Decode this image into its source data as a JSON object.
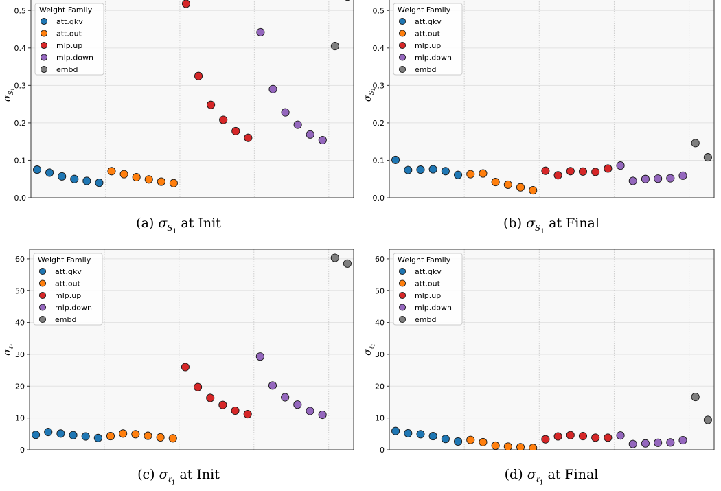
{
  "colors": {
    "att_qkv": "#1f77b4",
    "att_out": "#ff7f0e",
    "mlp_up": "#d62728",
    "mlp_down": "#9467bd",
    "embd": "#7f7f7f",
    "plot_bg": "#f8f8f8"
  },
  "legend": {
    "title": "Weight Family",
    "items": [
      "att.qkv",
      "att.out",
      "mlp.up",
      "mlp.down",
      "embd"
    ]
  },
  "captions": [
    {
      "prefix": "(a)",
      "symbol": "σ",
      "sub": "S",
      "subsub": "1",
      "suffix": "at Init"
    },
    {
      "prefix": "(b)",
      "symbol": "σ",
      "sub": "S",
      "subsub": "1",
      "suffix": "at Final"
    },
    {
      "prefix": "(c)",
      "symbol": "σ",
      "sub": "ℓ",
      "subsub": "1",
      "suffix": "at Init"
    },
    {
      "prefix": "(d)",
      "symbol": "σ",
      "sub": "ℓ",
      "subsub": "1",
      "suffix": "at Final"
    }
  ],
  "chart_data": [
    {
      "type": "scatter",
      "ylabel": "σ_S1",
      "ylabel_main": "σ",
      "ylabel_sub": "S",
      "ylabel_subsub": "1",
      "ylim": [
        0,
        0.55
      ],
      "yticks": [
        0.0,
        0.1,
        0.2,
        0.3,
        0.4,
        0.5
      ],
      "ytick_labels": [
        "0.0",
        "0.1",
        "0.2",
        "0.3",
        "0.4",
        "0.5"
      ],
      "grid": true,
      "legend_position": "top-left",
      "series": [
        {
          "name": "att.qkv",
          "x": [
            0,
            1,
            2,
            3,
            4,
            5
          ],
          "values": [
            0.075,
            0.067,
            0.057,
            0.05,
            0.045,
            0.04
          ]
        },
        {
          "name": "att.out",
          "x": [
            6,
            7,
            8,
            9,
            10,
            11
          ],
          "values": [
            0.071,
            0.063,
            0.055,
            0.049,
            0.043,
            0.039
          ]
        },
        {
          "name": "mlp.up",
          "x": [
            12,
            13,
            14,
            15,
            16,
            17
          ],
          "values": [
            0.518,
            0.325,
            0.248,
            0.208,
            0.178,
            0.16
          ]
        },
        {
          "name": "mlp.down",
          "x": [
            18,
            19,
            20,
            21,
            22,
            23
          ],
          "values": [
            0.442,
            0.29,
            0.228,
            0.195,
            0.169,
            0.154
          ]
        },
        {
          "name": "embd",
          "x": [
            24,
            25
          ],
          "values": [
            0.405,
            0.537
          ]
        }
      ]
    },
    {
      "type": "scatter",
      "ylabel": "σ_S1",
      "ylabel_main": "σ",
      "ylabel_sub": "S",
      "ylabel_subsub": "1",
      "ylim": [
        0,
        0.55
      ],
      "yticks": [
        0.0,
        0.1,
        0.2,
        0.3,
        0.4,
        0.5
      ],
      "ytick_labels": [
        "0.0",
        "0.1",
        "0.2",
        "0.3",
        "0.4",
        "0.5"
      ],
      "grid": true,
      "legend_position": "top-left",
      "series": [
        {
          "name": "att.qkv",
          "x": [
            0,
            1,
            2,
            3,
            4,
            5
          ],
          "values": [
            0.101,
            0.074,
            0.075,
            0.076,
            0.071,
            0.061
          ]
        },
        {
          "name": "att.out",
          "x": [
            6,
            7,
            8,
            9,
            10,
            11
          ],
          "values": [
            0.063,
            0.065,
            0.042,
            0.035,
            0.028,
            0.02
          ]
        },
        {
          "name": "mlp.up",
          "x": [
            12,
            13,
            14,
            15,
            16,
            17
          ],
          "values": [
            0.072,
            0.06,
            0.071,
            0.07,
            0.069,
            0.078
          ]
        },
        {
          "name": "mlp.down",
          "x": [
            18,
            19,
            20,
            21,
            22,
            23
          ],
          "values": [
            0.086,
            0.045,
            0.05,
            0.051,
            0.052,
            0.059
          ]
        },
        {
          "name": "embd",
          "x": [
            24,
            25
          ],
          "values": [
            0.146,
            0.108
          ]
        }
      ]
    },
    {
      "type": "scatter",
      "ylabel": "σ_ℓ1",
      "ylabel_main": "σ",
      "ylabel_sub": "ℓ",
      "ylabel_subsub": "1",
      "ylim": [
        0,
        63
      ],
      "yticks": [
        0,
        10,
        20,
        30,
        40,
        50,
        60
      ],
      "ytick_labels": [
        "0",
        "10",
        "20",
        "30",
        "40",
        "50",
        "60"
      ],
      "grid": true,
      "legend_position": "top-left",
      "series": [
        {
          "name": "att.qkv",
          "x": [
            0,
            1,
            2,
            3,
            4,
            5
          ],
          "values": [
            4.7,
            5.6,
            5.1,
            4.6,
            4.2,
            3.7
          ]
        },
        {
          "name": "att.out",
          "x": [
            6,
            7,
            8,
            9,
            10,
            11
          ],
          "values": [
            4.3,
            5.1,
            4.9,
            4.4,
            3.9,
            3.6
          ]
        },
        {
          "name": "mlp.up",
          "x": [
            12,
            13,
            14,
            15,
            16,
            17
          ],
          "values": [
            26.0,
            19.7,
            16.3,
            14.1,
            12.3,
            11.2
          ]
        },
        {
          "name": "mlp.down",
          "x": [
            18,
            19,
            20,
            21,
            22,
            23
          ],
          "values": [
            29.3,
            20.2,
            16.5,
            14.2,
            12.2,
            11.0
          ]
        },
        {
          "name": "embd",
          "x": [
            24,
            25
          ],
          "values": [
            60.3,
            58.5
          ]
        }
      ]
    },
    {
      "type": "scatter",
      "ylabel": "σ_ℓ1",
      "ylabel_main": "σ",
      "ylabel_sub": "ℓ",
      "ylabel_subsub": "1",
      "ylim": [
        0,
        63
      ],
      "yticks": [
        0,
        10,
        20,
        30,
        40,
        50,
        60
      ],
      "ytick_labels": [
        "0",
        "10",
        "20",
        "30",
        "40",
        "50",
        "60"
      ],
      "grid": true,
      "legend_position": "top-left",
      "series": [
        {
          "name": "att.qkv",
          "x": [
            0,
            1,
            2,
            3,
            4,
            5
          ],
          "values": [
            5.9,
            5.2,
            4.9,
            4.3,
            3.4,
            2.6
          ]
        },
        {
          "name": "att.out",
          "x": [
            6,
            7,
            8,
            9,
            10,
            11
          ],
          "values": [
            3.1,
            2.4,
            1.3,
            1.0,
            0.8,
            0.6
          ]
        },
        {
          "name": "mlp.up",
          "x": [
            12,
            13,
            14,
            15,
            16,
            17
          ],
          "values": [
            3.3,
            4.2,
            4.6,
            4.3,
            3.8,
            3.8
          ]
        },
        {
          "name": "mlp.down",
          "x": [
            18,
            19,
            20,
            21,
            22,
            23
          ],
          "values": [
            4.5,
            1.8,
            2.0,
            2.2,
            2.3,
            3.0
          ]
        },
        {
          "name": "embd",
          "x": [
            24,
            25
          ],
          "values": [
            16.6,
            9.4
          ]
        }
      ]
    }
  ]
}
